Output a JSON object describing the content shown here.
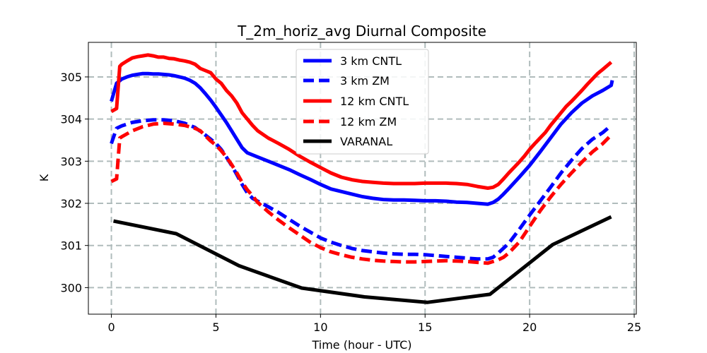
{
  "chart_data": {
    "type": "line",
    "title": "T_2m_horiz_avg Diurnal Composite",
    "xlabel": "Time (hour - UTC)",
    "ylabel": "K",
    "xlim": [
      -1.1,
      25.1
    ],
    "ylim": [
      299.37,
      305.82
    ],
    "xticks": [
      0,
      5,
      10,
      15,
      20,
      25
    ],
    "yticks": [
      300,
      301,
      302,
      303,
      304,
      305
    ],
    "grid": true,
    "legend_position": "upper-center",
    "series": [
      {
        "name": "3 km CNTL",
        "color": "#0000ff",
        "dash": "solid",
        "x": [
          0,
          0.25,
          0.5,
          0.75,
          1,
          1.25,
          1.5,
          1.75,
          2,
          2.25,
          2.5,
          2.75,
          3,
          3.25,
          3.5,
          3.75,
          4,
          4.25,
          4.5,
          4.75,
          5,
          5.25,
          5.5,
          5.75,
          6,
          6.25,
          6.5,
          6.75,
          7,
          7.5,
          8,
          8.5,
          9,
          9.5,
          10,
          10.5,
          11,
          11.5,
          12,
          12.5,
          13,
          13.5,
          14,
          14.5,
          15,
          15.5,
          16,
          16.5,
          17,
          17.5,
          18,
          18.25,
          18.5,
          18.75,
          19,
          19.5,
          20,
          20.5,
          21,
          21.5,
          22,
          22.5,
          23,
          23.5,
          23.9
        ],
        "y": [
          304.42,
          304.85,
          304.95,
          305.0,
          305.04,
          305.06,
          305.08,
          305.08,
          305.07,
          305.07,
          305.06,
          305.05,
          305.03,
          305.0,
          304.97,
          304.92,
          304.85,
          304.74,
          304.6,
          304.45,
          304.28,
          304.1,
          303.92,
          303.72,
          303.52,
          303.32,
          303.2,
          303.15,
          303.1,
          303.0,
          302.9,
          302.8,
          302.68,
          302.57,
          302.45,
          302.34,
          302.28,
          302.22,
          302.16,
          302.12,
          302.09,
          302.08,
          302.08,
          302.07,
          302.06,
          302.06,
          302.05,
          302.03,
          302.02,
          302.0,
          301.98,
          302.02,
          302.1,
          302.22,
          302.35,
          302.62,
          302.9,
          303.22,
          303.55,
          303.88,
          304.15,
          304.38,
          304.55,
          304.68,
          304.8
        ],
        "y_end": 304.92
      },
      {
        "name": "3 km ZM",
        "color": "#0000ff",
        "dash": "dashed",
        "x": [
          0,
          0.25,
          0.5,
          0.75,
          1,
          1.5,
          2,
          2.5,
          3,
          3.5,
          4,
          4.5,
          5,
          5.25,
          5.5,
          5.75,
          6,
          6.25,
          6.5,
          6.75,
          7,
          7.5,
          8,
          8.5,
          9,
          9.5,
          10,
          10.5,
          11,
          11.5,
          12,
          12.5,
          13,
          13.5,
          14,
          14.5,
          15,
          15.5,
          16,
          16.5,
          17,
          17.5,
          18,
          18.25,
          18.5,
          19,
          19.5,
          20,
          20.5,
          21,
          21.5,
          22,
          22.5,
          23,
          23.5,
          23.9
        ],
        "y": [
          303.42,
          303.78,
          303.84,
          303.88,
          303.92,
          303.96,
          303.98,
          303.98,
          303.96,
          303.9,
          303.8,
          303.62,
          303.42,
          303.28,
          303.1,
          302.9,
          302.68,
          302.45,
          302.25,
          302.12,
          302.05,
          301.92,
          301.78,
          301.62,
          301.46,
          301.32,
          301.18,
          301.08,
          301.0,
          300.93,
          300.88,
          300.85,
          300.82,
          300.8,
          300.79,
          300.79,
          300.78,
          300.76,
          300.74,
          300.72,
          300.7,
          300.68,
          300.68,
          300.72,
          300.82,
          301.05,
          301.38,
          301.72,
          302.05,
          302.38,
          302.72,
          303.02,
          303.3,
          303.52,
          303.68,
          303.85
        ]
      },
      {
        "name": "12 km CNTL",
        "color": "#ff0000",
        "dash": "solid",
        "x": [
          0,
          0.25,
          0.4,
          0.5,
          0.75,
          1,
          1.25,
          1.5,
          1.75,
          2,
          2.25,
          2.5,
          2.75,
          3,
          3.25,
          3.5,
          3.75,
          4,
          4.25,
          4.5,
          4.75,
          5,
          5.25,
          5.5,
          5.75,
          6,
          6.25,
          6.5,
          6.75,
          7,
          7.5,
          8,
          8.5,
          9,
          9.5,
          10,
          10.5,
          11,
          11.5,
          12,
          12.5,
          13,
          13.5,
          14,
          14.5,
          15,
          15.5,
          16,
          16.5,
          17,
          17.5,
          18,
          18.25,
          18.5,
          18.75,
          19,
          19.25,
          19.5,
          19.75,
          20,
          20.25,
          20.5,
          20.75,
          21,
          21.25,
          21.5,
          21.75,
          22,
          22.25,
          22.5,
          22.75,
          23,
          23.25,
          23.5,
          23.9
        ],
        "y": [
          304.18,
          304.25,
          305.25,
          305.3,
          305.38,
          305.45,
          305.48,
          305.5,
          305.52,
          305.5,
          305.47,
          305.47,
          305.44,
          305.43,
          305.4,
          305.38,
          305.35,
          305.3,
          305.2,
          305.15,
          305.1,
          304.95,
          304.85,
          304.68,
          304.55,
          304.38,
          304.15,
          304.0,
          303.85,
          303.72,
          303.55,
          303.42,
          303.28,
          303.12,
          302.98,
          302.85,
          302.72,
          302.62,
          302.56,
          302.52,
          302.5,
          302.48,
          302.47,
          302.47,
          302.47,
          302.48,
          302.48,
          302.48,
          302.47,
          302.45,
          302.4,
          302.36,
          302.38,
          302.45,
          302.58,
          302.72,
          302.85,
          302.98,
          303.12,
          303.28,
          303.42,
          303.55,
          303.68,
          303.85,
          304.0,
          304.15,
          304.3,
          304.42,
          304.55,
          304.68,
          304.82,
          304.95,
          305.08,
          305.18,
          305.35
        ]
      },
      {
        "name": "12 km ZM",
        "color": "#ff0000",
        "dash": "dashed",
        "x": [
          0,
          0.25,
          0.4,
          0.5,
          0.75,
          1,
          1.5,
          2,
          2.5,
          3,
          3.5,
          4,
          4.25,
          4.5,
          4.75,
          5,
          5.25,
          5.5,
          5.75,
          6,
          6.25,
          6.5,
          6.75,
          7,
          7.5,
          8,
          8.5,
          9,
          9.5,
          10,
          10.5,
          11,
          11.5,
          12,
          12.5,
          13,
          13.5,
          14,
          14.5,
          15,
          15.5,
          16,
          16.5,
          17,
          17.5,
          18,
          18.25,
          18.5,
          18.75,
          19,
          19.5,
          20,
          20.5,
          21,
          21.5,
          22,
          22.5,
          23,
          23.5,
          23.9
        ],
        "y": [
          302.52,
          302.58,
          303.55,
          303.58,
          303.65,
          303.72,
          303.82,
          303.88,
          303.9,
          303.88,
          303.85,
          303.78,
          303.72,
          303.6,
          303.48,
          303.38,
          303.25,
          303.1,
          302.92,
          302.72,
          302.5,
          302.32,
          302.18,
          302.02,
          301.8,
          301.6,
          301.42,
          301.25,
          301.08,
          300.95,
          300.85,
          300.78,
          300.72,
          300.68,
          300.65,
          300.63,
          300.62,
          300.61,
          300.61,
          300.62,
          300.63,
          300.64,
          300.63,
          300.62,
          300.6,
          300.58,
          300.62,
          300.66,
          300.72,
          300.82,
          301.08,
          301.45,
          301.82,
          302.15,
          302.45,
          302.72,
          302.98,
          303.22,
          303.42,
          303.62
        ]
      },
      {
        "name": "VARANAL",
        "color": "#000000",
        "dash": "solid",
        "x": [
          0.1,
          3.1,
          6.1,
          9.1,
          12.1,
          15.1,
          18.1,
          21.1,
          23.9
        ],
        "y": [
          301.58,
          301.28,
          300.52,
          299.99,
          299.78,
          299.65,
          299.84,
          301.02,
          301.68
        ]
      }
    ]
  }
}
